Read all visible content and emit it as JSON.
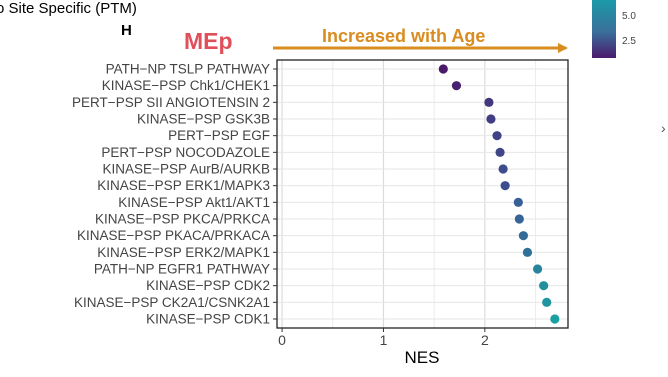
{
  "header": {
    "title": "o Site Specific (PTM)",
    "panel_letter": "H",
    "group_label": "MEp",
    "trend_label": "Increased with Age",
    "edge_mark": "›"
  },
  "colors": {
    "group_label": "#e0505b",
    "trend": "#d98c1f",
    "legend_high": "#1a9aa8",
    "legend_low": "#4a1a6b"
  },
  "legend": {
    "ticks": [
      "5.0",
      "2.5"
    ]
  },
  "chart_data": {
    "type": "scatter",
    "orientation": "horizontal",
    "xlabel": "NES",
    "xticks": [
      "0",
      "1",
      "2"
    ],
    "xlim": [
      -0.05,
      2.82
    ],
    "grid": true,
    "categories": [
      "PATH−NP TSLP PATHWAY",
      "KINASE−PSP Chk1/CHEK1",
      "PERT−PSP SII ANGIOTENSIN 2",
      "KINASE−PSP GSK3B",
      "PERT−PSP EGF",
      "PERT−PSP NOCODAZOLE",
      "KINASE−PSP AurB/AURKB",
      "KINASE−PSP ERK1/MAPK3",
      "KINASE−PSP Akt1/AKT1",
      "KINASE−PSP PKCA/PRKCA",
      "KINASE−PSP PKACA/PRKACA",
      "KINASE−PSP ERK2/MAPK1",
      "PATH−NP EGFR1 PATHWAY",
      "KINASE−PSP CDK2",
      "KINASE−PSP CK2A1/CSNK2A1",
      "KINASE−PSP CDK1"
    ],
    "values": [
      1.59,
      1.72,
      2.04,
      2.06,
      2.12,
      2.15,
      2.18,
      2.2,
      2.33,
      2.34,
      2.38,
      2.42,
      2.52,
      2.58,
      2.61,
      2.69
    ],
    "color_values": [
      1.8,
      2.0,
      2.6,
      2.7,
      2.9,
      3.0,
      3.1,
      3.2,
      3.7,
      3.8,
      4.0,
      4.2,
      4.8,
      5.1,
      5.3,
      5.6
    ]
  }
}
